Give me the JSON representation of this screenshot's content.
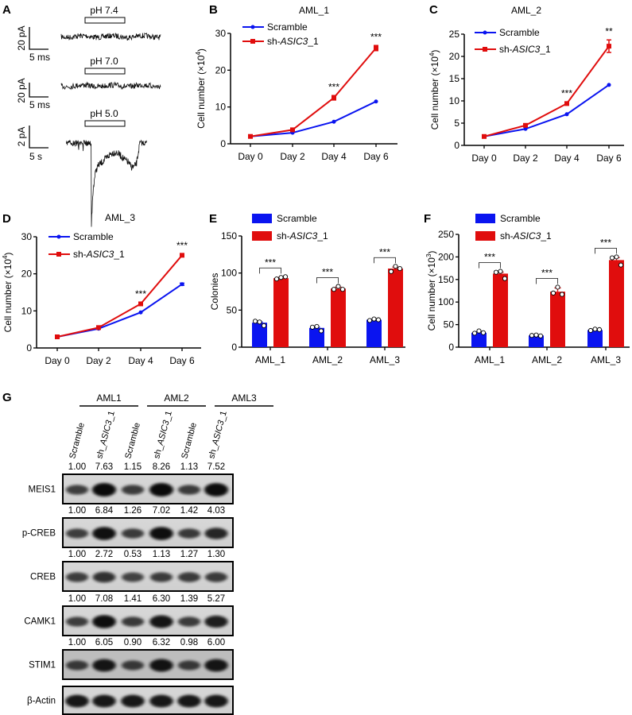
{
  "panel_labels": [
    "A",
    "B",
    "C",
    "D",
    "E",
    "F",
    "G"
  ],
  "colors": {
    "scramble": "#0a14f0",
    "sh": "#e00d0d",
    "axis": "#000000"
  },
  "panel_a": {
    "traces": [
      {
        "condition": "pH 7.4",
        "scale_y": "20 pA",
        "scale_x": "5 ms",
        "response": "none"
      },
      {
        "condition": "pH 7.0",
        "scale_y": "20 pA",
        "scale_x": "5 ms",
        "response": "none"
      },
      {
        "condition": "pH 5.0",
        "scale_y": "2 pA",
        "scale_x": "5 s",
        "response": "inward current"
      }
    ]
  },
  "chart_data": [
    {
      "panel": "B",
      "type": "line",
      "title": "AML_1",
      "ylabel": "Cell number (×10⁴)",
      "ylim": [
        0,
        30
      ],
      "yticks": [
        0,
        10,
        20,
        30
      ],
      "categories": [
        "Day 0",
        "Day 2",
        "Day 4",
        "Day 6"
      ],
      "legend": "top-left",
      "series": [
        {
          "name": "Scramble",
          "values": [
            2,
            3,
            6,
            11.5
          ],
          "errors": [
            0,
            0,
            0,
            0
          ]
        },
        {
          "name": "sh-ASIC3_1",
          "name_prefix": "sh-",
          "name_italic": "ASIC3",
          "name_suffix": "_1",
          "values": [
            2,
            3.8,
            12.5,
            26
          ],
          "errors": [
            0,
            0,
            0.6,
            0.7
          ]
        }
      ],
      "significance": [
        "",
        "",
        "***",
        "***"
      ]
    },
    {
      "panel": "C",
      "type": "line",
      "title": "AML_2",
      "ylabel": "Cell number (×10⁴)",
      "ylim": [
        0,
        25
      ],
      "yticks": [
        0,
        5,
        10,
        15,
        20,
        25
      ],
      "categories": [
        "Day 0",
        "Day 2",
        "Day 4",
        "Day 6"
      ],
      "legend": "top-left",
      "series": [
        {
          "name": "Scramble",
          "values": [
            2,
            3.7,
            7,
            13.6
          ],
          "errors": [
            0,
            0,
            0,
            0
          ]
        },
        {
          "name": "sh-ASIC3_1",
          "name_prefix": "sh-",
          "name_italic": "ASIC3",
          "name_suffix": "_1",
          "values": [
            2,
            4.5,
            9.4,
            22.3
          ],
          "errors": [
            0,
            0,
            0.3,
            1.4
          ]
        }
      ],
      "significance": [
        "",
        "",
        "***",
        "**"
      ]
    },
    {
      "panel": "D",
      "type": "line",
      "title": "AML_3",
      "ylabel": "Cell number (×10⁴)",
      "ylim": [
        0,
        30
      ],
      "yticks": [
        0,
        10,
        20,
        30
      ],
      "categories": [
        "Day 0",
        "Day 2",
        "Day 4",
        "Day 6"
      ],
      "legend": "top-left",
      "series": [
        {
          "name": "Scramble",
          "values": [
            3,
            5.2,
            9.6,
            17.2
          ],
          "errors": [
            0,
            0,
            0,
            0.3
          ]
        },
        {
          "name": "sh-ASIC3_1",
          "name_prefix": "sh-",
          "name_italic": "ASIC3",
          "name_suffix": "_1",
          "values": [
            3,
            5.5,
            11.9,
            25
          ],
          "errors": [
            0,
            0,
            0.3,
            0.3
          ]
        }
      ],
      "significance": [
        "",
        "",
        "***",
        "***"
      ]
    },
    {
      "panel": "E",
      "type": "bar",
      "title": "",
      "ylabel": "Colonies",
      "ylim": [
        0,
        150
      ],
      "yticks": [
        0,
        50,
        100,
        150
      ],
      "categories": [
        "AML_1",
        "AML_2",
        "AML_3"
      ],
      "legend": "top-left",
      "series": [
        {
          "name": "Scramble",
          "values": [
            33,
            26,
            37
          ],
          "points": [
            [
              35,
              34,
              29
            ],
            [
              27,
              28,
              22
            ],
            [
              36,
              38,
              37
            ]
          ]
        },
        {
          "name": "sh-ASIC3_1",
          "name_prefix": "sh-",
          "name_italic": "ASIC3",
          "name_suffix": "_1",
          "values": [
            93,
            79,
            106
          ],
          "points": [
            [
              92,
              94,
              95
            ],
            [
              78,
              82,
              78
            ],
            [
              102,
              109,
              106
            ]
          ]
        }
      ],
      "significance": [
        "***",
        "***",
        "***"
      ]
    },
    {
      "panel": "F",
      "type": "bar",
      "title": "",
      "ylabel": "Cell number (×10³)",
      "ylim": [
        0,
        250
      ],
      "yticks": [
        0,
        50,
        100,
        150,
        200,
        250
      ],
      "categories": [
        "AML_1",
        "AML_2",
        "AML_3"
      ],
      "legend": "top-left",
      "series": [
        {
          "name": "Scramble",
          "values": [
            32,
            26,
            38
          ],
          "points": [
            [
              31,
              36,
              32
            ],
            [
              26,
              27,
              25
            ],
            [
              37,
              40,
              39
            ]
          ]
        },
        {
          "name": "sh-ASIC3_1",
          "name_prefix": "sh-",
          "name_italic": "ASIC3",
          "name_suffix": "_1",
          "values": [
            163,
            123,
            193
          ],
          "points": [
            [
              166,
              168,
              152
            ],
            [
              120,
              133,
              117
            ],
            [
              198,
              200,
              182
            ]
          ]
        }
      ],
      "significance": [
        "***",
        "***",
        "***"
      ]
    }
  ],
  "panel_g": {
    "groups": [
      "AML1",
      "AML2",
      "AML3"
    ],
    "lanes": [
      "Scramble",
      "sh_ASIC3_1",
      "Scramble",
      "sh_ASIC3_1",
      "Scramble",
      "sh_ASIC3_1"
    ],
    "lane_prefix": "sh_",
    "lane_italic": "ASIC3",
    "lane_suffix": "_1",
    "blots": [
      {
        "protein": "MEIS1",
        "quant": [
          "1.00",
          "7.63",
          "1.15",
          "8.26",
          "1.13",
          "7.52"
        ]
      },
      {
        "protein": "p-CREB",
        "quant": [
          "1.00",
          "6.84",
          "1.26",
          "7.02",
          "1.42",
          "4.03"
        ]
      },
      {
        "protein": "CREB",
        "quant": [
          "1.00",
          "2.72",
          "0.53",
          "1.13",
          "1.27",
          "1.30"
        ]
      },
      {
        "protein": "CAMK1",
        "quant": [
          "1.00",
          "7.08",
          "1.41",
          "6.30",
          "1.39",
          "5.27"
        ]
      },
      {
        "protein": "STIM1",
        "quant": [
          "1.00",
          "6.05",
          "0.90",
          "6.32",
          "0.98",
          "6.00"
        ]
      },
      {
        "protein": "β-Actin",
        "quant": []
      }
    ]
  }
}
